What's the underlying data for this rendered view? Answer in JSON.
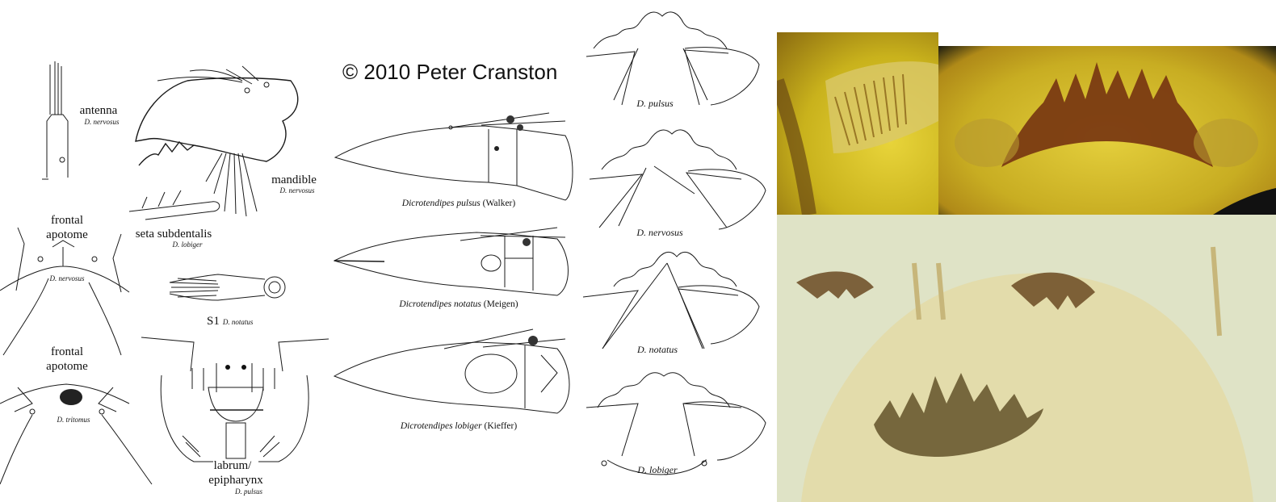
{
  "copyright": "© 2010 Peter Cranston",
  "left_labels": {
    "antenna": {
      "label": "antenna",
      "species": "D. nervosus"
    },
    "mandible": {
      "label": "mandible",
      "species": "D. nervosus"
    },
    "seta": {
      "label": "seta subdentalis",
      "species": "D. lobiger"
    },
    "frontal1": {
      "label_line1": "frontal",
      "label_line2": "apotome",
      "species": "D. nervosus"
    },
    "s1": {
      "label": "S1",
      "species": "D. notatus"
    },
    "frontal2": {
      "label_line1": "frontal",
      "label_line2": "apotome",
      "species": "D. tritomus"
    },
    "labrum": {
      "label_line1": "labrum/",
      "label_line2": "epipharynx",
      "species": "D. pulsus"
    }
  },
  "head_captions": [
    {
      "genus": "Dicrotendipes pulsus",
      "author": "(Walker)"
    },
    {
      "genus": "Dicrotendipes notatus",
      "author": "(Meigen)"
    },
    {
      "genus": "Dicrotendipes lobiger",
      "author": "(Kieffer)"
    }
  ],
  "mentum_captions": [
    "D. pulsus",
    "D. nervosus",
    "D. notatus",
    "D. lobiger"
  ],
  "colors": {
    "photo_top_bg": "#b9a21a",
    "photo_teeth": "#7a3a12",
    "photo_bottom_bg": "#dfe3c6"
  }
}
